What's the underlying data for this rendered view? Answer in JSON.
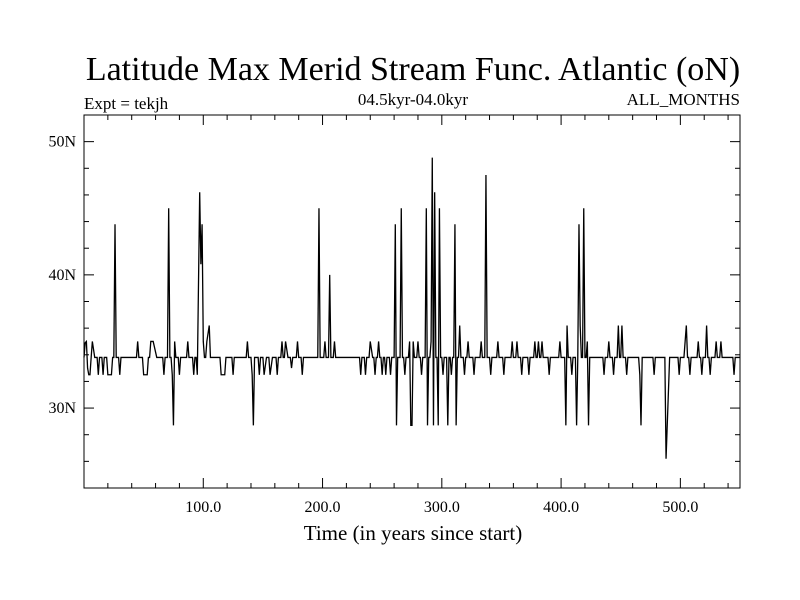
{
  "chart_data": {
    "type": "line",
    "title": "Latitude Max Merid Stream Func. Atlantic (oN)",
    "subtitle_left": "Expt = tekjh",
    "subtitle_center": "04.5kyr-04.0kyr",
    "subtitle_right": "ALL_MONTHS",
    "xlabel": "Time (in years since start)",
    "ylabel": "",
    "xlim": [
      0,
      550
    ],
    "ylim": [
      24,
      52
    ],
    "x_ticks": [
      {
        "value": 100,
        "label": "100.0"
      },
      {
        "value": 200,
        "label": "200.0"
      },
      {
        "value": 300,
        "label": "300.0"
      },
      {
        "value": 400,
        "label": "400.0"
      },
      {
        "value": 500,
        "label": "500.0"
      }
    ],
    "y_ticks": [
      {
        "value": 30,
        "label": "30N"
      },
      {
        "value": 40,
        "label": "40N"
      },
      {
        "value": 50,
        "label": "50N"
      }
    ],
    "x_minor_step": 20,
    "y_minor_step": 2,
    "baseline": 33.8,
    "series": [
      {
        "name": "tekjh",
        "color": "#000000",
        "events": [
          [
            1,
            34.9
          ],
          [
            2,
            35
          ],
          [
            3,
            33
          ],
          [
            4,
            32.5
          ],
          [
            5,
            32.5
          ],
          [
            6,
            33.8
          ],
          [
            7,
            35
          ],
          [
            9,
            33.8
          ],
          [
            12,
            32.5
          ],
          [
            13,
            33.8
          ],
          [
            16,
            32.5
          ],
          [
            17,
            33.8
          ],
          [
            20,
            32.5
          ],
          [
            23,
            32.5
          ],
          [
            24,
            33.8
          ],
          [
            26,
            43.8
          ],
          [
            27,
            33.8
          ],
          [
            30,
            32.5
          ],
          [
            31,
            33.8
          ],
          [
            45,
            35
          ],
          [
            46,
            33.8
          ],
          [
            50,
            32.5
          ],
          [
            53,
            32.5
          ],
          [
            54,
            33.8
          ],
          [
            56,
            35
          ],
          [
            58,
            35
          ],
          [
            61,
            33.8
          ],
          [
            67,
            32.5
          ],
          [
            68,
            33.8
          ],
          [
            71,
            45
          ],
          [
            72,
            33.8
          ],
          [
            74,
            32.5
          ],
          [
            75,
            28.7
          ],
          [
            76,
            35
          ],
          [
            77,
            33.8
          ],
          [
            80,
            32.5
          ],
          [
            81,
            33.8
          ],
          [
            87,
            35
          ],
          [
            88,
            33.8
          ],
          [
            92,
            32.5
          ],
          [
            93,
            33.8
          ],
          [
            95,
            32.5
          ],
          [
            97,
            46.2
          ],
          [
            98,
            40.8
          ],
          [
            99,
            43.8
          ],
          [
            100,
            35
          ],
          [
            101,
            33.8
          ],
          [
            103,
            35
          ],
          [
            105,
            36.2
          ],
          [
            106,
            33.8
          ],
          [
            115,
            32.5
          ],
          [
            118,
            32.5
          ],
          [
            119,
            33.8
          ],
          [
            125,
            32.5
          ],
          [
            126,
            33.8
          ],
          [
            137,
            35
          ],
          [
            138,
            33.8
          ],
          [
            141,
            32.5
          ],
          [
            142,
            28.7
          ],
          [
            143,
            33.8
          ],
          [
            147,
            32.5
          ],
          [
            148,
            33.8
          ],
          [
            151,
            32.5
          ],
          [
            153,
            33.8
          ],
          [
            156,
            32.5
          ],
          [
            158,
            33.8
          ],
          [
            162,
            32.5
          ],
          [
            163,
            33.8
          ],
          [
            166,
            35
          ],
          [
            167,
            33.8
          ],
          [
            169,
            35
          ],
          [
            171,
            33.8
          ],
          [
            174,
            33
          ],
          [
            175,
            33.8
          ],
          [
            179,
            35
          ],
          [
            180,
            33.8
          ],
          [
            183,
            32.5
          ],
          [
            184,
            33.8
          ],
          [
            197,
            45
          ],
          [
            198,
            33.8
          ],
          [
            202,
            35
          ],
          [
            203,
            33.8
          ],
          [
            206,
            40
          ],
          [
            207,
            33.8
          ],
          [
            210,
            35
          ],
          [
            211,
            33.8
          ],
          [
            232,
            32.5
          ],
          [
            233,
            33.8
          ],
          [
            236,
            32.5
          ],
          [
            237,
            33.8
          ],
          [
            240,
            35
          ],
          [
            242,
            33.8
          ],
          [
            244,
            32.5
          ],
          [
            245,
            33.8
          ],
          [
            247,
            35
          ],
          [
            248,
            33.8
          ],
          [
            250,
            32.5
          ],
          [
            251,
            33.8
          ],
          [
            253,
            32.5
          ],
          [
            254,
            33.8
          ],
          [
            257,
            32.5
          ],
          [
            258,
            33.8
          ],
          [
            261,
            43.8
          ],
          [
            262,
            28.7
          ],
          [
            263,
            33.8
          ],
          [
            266,
            45
          ],
          [
            267,
            33.8
          ],
          [
            269,
            32.5
          ],
          [
            270,
            33.8
          ],
          [
            273,
            35
          ],
          [
            274,
            28.7
          ],
          [
            275,
            28.7
          ],
          [
            276,
            35
          ],
          [
            277,
            33.8
          ],
          [
            280,
            35
          ],
          [
            281,
            33.8
          ],
          [
            283,
            32.5
          ],
          [
            284,
            33.8
          ],
          [
            287,
            45
          ],
          [
            288,
            28.7
          ],
          [
            289,
            33.8
          ],
          [
            291,
            35
          ],
          [
            292,
            48.8
          ],
          [
            293,
            28.7
          ],
          [
            294,
            46.2
          ],
          [
            295,
            33.8
          ],
          [
            297,
            28.7
          ],
          [
            298,
            45
          ],
          [
            299,
            33.8
          ],
          [
            301,
            32.5
          ],
          [
            302,
            33.8
          ],
          [
            305,
            28.7
          ],
          [
            306,
            33.8
          ],
          [
            308,
            32.5
          ],
          [
            309,
            33.8
          ],
          [
            311,
            43.8
          ],
          [
            312,
            28.7
          ],
          [
            313,
            33.8
          ],
          [
            315,
            36.2
          ],
          [
            316,
            33.8
          ],
          [
            319,
            32.5
          ],
          [
            320,
            33.8
          ],
          [
            322,
            35
          ],
          [
            323,
            33.8
          ],
          [
            327,
            32.5
          ],
          [
            328,
            33.8
          ],
          [
            333,
            35
          ],
          [
            334,
            33.8
          ],
          [
            337,
            47.5
          ],
          [
            338,
            33.8
          ],
          [
            341,
            32.5
          ],
          [
            342,
            33.8
          ],
          [
            347,
            35
          ],
          [
            348,
            33.8
          ],
          [
            352,
            32.5
          ],
          [
            353,
            33.8
          ],
          [
            359,
            35
          ],
          [
            360,
            33.8
          ],
          [
            363,
            35
          ],
          [
            364,
            33.8
          ],
          [
            367,
            32.5
          ],
          [
            368,
            33.8
          ],
          [
            373,
            32.5
          ],
          [
            374,
            33.8
          ],
          [
            378,
            35
          ],
          [
            379,
            33.8
          ],
          [
            381,
            35
          ],
          [
            382,
            33.8
          ],
          [
            384,
            35
          ],
          [
            385,
            33.8
          ],
          [
            390,
            32.5
          ],
          [
            391,
            33.8
          ],
          [
            399,
            35
          ],
          [
            400,
            33.8
          ],
          [
            404,
            28.7
          ],
          [
            405,
            36.2
          ],
          [
            406,
            33.8
          ],
          [
            409,
            32.5
          ],
          [
            410,
            33.8
          ],
          [
            413,
            28.7
          ],
          [
            414,
            33.8
          ],
          [
            415,
            43.8
          ],
          [
            416,
            36.2
          ],
          [
            417,
            33.8
          ],
          [
            419,
            45
          ],
          [
            420,
            33.8
          ],
          [
            422,
            35
          ],
          [
            423,
            28.7
          ],
          [
            424,
            33.8
          ],
          [
            436,
            32.5
          ],
          [
            437,
            33.8
          ],
          [
            440,
            35
          ],
          [
            441,
            33.8
          ],
          [
            444,
            32.5
          ],
          [
            445,
            33.8
          ],
          [
            448,
            36.2
          ],
          [
            449,
            33.8
          ],
          [
            451,
            36.2
          ],
          [
            452,
            33.8
          ],
          [
            455,
            32.5
          ],
          [
            456,
            33.8
          ],
          [
            464,
            33.8
          ],
          [
            466,
            32.5
          ],
          [
            467,
            28.7
          ],
          [
            468,
            33.8
          ],
          [
            476,
            33.8
          ],
          [
            478,
            32.5
          ],
          [
            479,
            33.8
          ],
          [
            487,
            33.8
          ],
          [
            488,
            26.2
          ],
          [
            491,
            33.8
          ],
          [
            497,
            33.8
          ],
          [
            499,
            32.5
          ],
          [
            500,
            33.8
          ],
          [
            504,
            35
          ],
          [
            505,
            36.2
          ],
          [
            506,
            33.8
          ],
          [
            508,
            32.5
          ],
          [
            509,
            33.8
          ],
          [
            515,
            35
          ],
          [
            516,
            33.8
          ],
          [
            518,
            32.5
          ],
          [
            519,
            33.8
          ],
          [
            522,
            36.2
          ],
          [
            523,
            33.8
          ],
          [
            525,
            32.5
          ],
          [
            526,
            33.8
          ],
          [
            530,
            35
          ],
          [
            531,
            33.8
          ],
          [
            534,
            35
          ],
          [
            535,
            33.8
          ],
          [
            545,
            32.5
          ],
          [
            546,
            33.8
          ],
          [
            550,
            33.8
          ]
        ]
      }
    ]
  }
}
